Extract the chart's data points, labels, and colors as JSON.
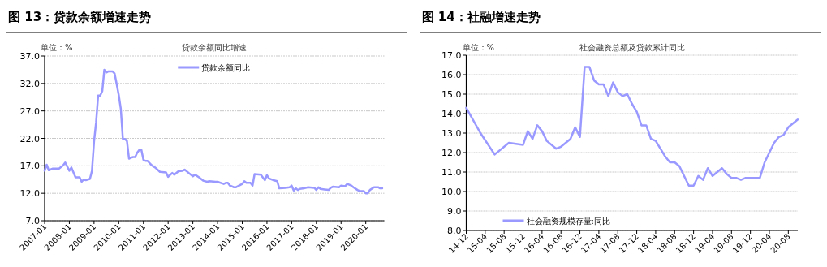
{
  "chart_data": [
    {
      "type": "line",
      "title": "图 13：贷款余额增速走势",
      "subtitle": "贷款余额同比增速",
      "ylabel": "单位：%",
      "x": [
        "2007-01",
        "2007-02",
        "2007-03",
        "2007-05",
        "2007-08",
        "2007-10",
        "2007-11",
        "2008-01",
        "2008-02",
        "2008-04",
        "2008-06",
        "2008-07",
        "2008-08",
        "2008-09",
        "2008-10",
        "2008-11",
        "2008-12",
        "2009-01",
        "2009-02",
        "2009-03",
        "2009-04",
        "2009-05",
        "2009-06",
        "2009-07",
        "2009-08",
        "2009-09",
        "2009-10",
        "2009-11",
        "2009-12",
        "2010-01",
        "2010-02",
        "2010-03",
        "2010-04",
        "2010-05",
        "2010-06",
        "2010-07",
        "2010-08",
        "2010-09",
        "2010-10",
        "2010-11",
        "2010-12",
        "2011-01",
        "2011-02",
        "2011-03",
        "2011-05",
        "2011-07",
        "2011-09",
        "2011-12",
        "2012-01",
        "2012-03",
        "2012-04",
        "2012-06",
        "2012-08",
        "2012-09",
        "2012-11",
        "2013-01",
        "2013-02",
        "2013-04",
        "2013-06",
        "2013-08",
        "2013-09",
        "2013-12",
        "2014-01",
        "2014-04",
        "2014-05",
        "2014-06",
        "2014-07",
        "2014-09",
        "2014-10",
        "2015-01",
        "2015-02",
        "2015-03",
        "2015-05",
        "2015-06",
        "2015-07",
        "2015-10",
        "2015-12",
        "2016-01",
        "2016-02",
        "2016-04",
        "2016-06",
        "2016-07",
        "2016-10",
        "2016-12",
        "2017-01",
        "2017-02",
        "2017-03",
        "2017-04",
        "2017-05",
        "2017-07",
        "2017-09",
        "2017-12",
        "2018-01",
        "2018-02",
        "2018-03",
        "2018-05",
        "2018-07",
        "2018-08",
        "2018-09",
        "2018-12",
        "2019-01",
        "2019-03",
        "2019-04",
        "2019-06",
        "2019-07",
        "2019-09",
        "2019-10",
        "2019-12",
        "2020-01",
        "2020-02",
        "2020-03",
        "2020-05",
        "2020-07",
        "2020-08",
        "2020-09"
      ],
      "series": [
        {
          "name": "贷款余额同比",
          "color": "#9999ff",
          "values": [
            16.1,
            17.2,
            16.2,
            16.5,
            16.5,
            17.1,
            17.6,
            16.1,
            16.7,
            14.9,
            14.9,
            14.1,
            14.5,
            14.4,
            14.5,
            14.6,
            16.1,
            21.4,
            24.9,
            29.8,
            29.8,
            30.6,
            34.5,
            34.0,
            34.2,
            34.2,
            34.2,
            33.8,
            31.9,
            29.9,
            27.4,
            21.9,
            21.9,
            21.5,
            18.3,
            18.5,
            18.6,
            18.6,
            19.4,
            19.9,
            19.9,
            18.1,
            17.9,
            17.9,
            17.1,
            16.6,
            15.9,
            15.8,
            15.0,
            15.7,
            15.4,
            16.0,
            16.1,
            16.3,
            15.7,
            15.1,
            15.4,
            14.9,
            14.3,
            14.1,
            14.2,
            14.1,
            14.1,
            13.7,
            13.9,
            13.9,
            13.4,
            13.1,
            13.1,
            13.7,
            14.2,
            13.9,
            13.9,
            13.4,
            15.5,
            15.4,
            14.4,
            15.3,
            14.7,
            14.4,
            14.2,
            12.9,
            13.0,
            13.1,
            13.4,
            12.5,
            12.9,
            12.6,
            12.8,
            12.9,
            13.1,
            13.0,
            12.6,
            13.1,
            12.8,
            12.7,
            12.6,
            13.0,
            13.2,
            13.1,
            13.4,
            13.3,
            13.7,
            13.4,
            13.1,
            12.6,
            12.4,
            12.4,
            12.0,
            12.0,
            12.6,
            13.1,
            13.1,
            12.9,
            12.9
          ]
        }
      ],
      "xlim": [
        "2007-01",
        "2020-10"
      ],
      "xticks": [
        "2007-01",
        "2008-01",
        "2009-01",
        "2010-01",
        "2011-01",
        "2012-01",
        "2013-01",
        "2014-01",
        "2015-01",
        "2016-01",
        "2017-01",
        "2018-01",
        "2019-01",
        "2020-01"
      ],
      "ylim": [
        7,
        37
      ],
      "yticks": [
        {
          "value": 7,
          "label": "7.0"
        },
        {
          "value": 12,
          "label": "12.0"
        },
        {
          "value": 17,
          "label": "17.0"
        },
        {
          "value": 22,
          "label": "22.0"
        },
        {
          "value": 27,
          "label": "27.0"
        },
        {
          "value": 32,
          "label": "32.0"
        },
        {
          "value": 37,
          "label": "37.0"
        }
      ],
      "grid": "y",
      "legend": "top"
    },
    {
      "type": "line",
      "title": "图 14：社融增速走势",
      "subtitle": "社会融资总额及贷款累计同比",
      "ylabel": "单位：%",
      "x": [
        "2014-12",
        "2015-03",
        "2015-06",
        "2015-09",
        "2015-12",
        "2016-01",
        "2016-02",
        "2016-03",
        "2016-04",
        "2016-05",
        "2016-07",
        "2016-08",
        "2016-10",
        "2016-11",
        "2016-12",
        "2017-01",
        "2017-02",
        "2017-03",
        "2017-04",
        "2017-05",
        "2017-06",
        "2017-07",
        "2017-08",
        "2017-09",
        "2017-10",
        "2017-11",
        "2017-12",
        "2018-01",
        "2018-02",
        "2018-03",
        "2018-04",
        "2018-05",
        "2018-06",
        "2018-07",
        "2018-08",
        "2018-09",
        "2018-10",
        "2018-11",
        "2018-12",
        "2019-01",
        "2019-02",
        "2019-03",
        "2019-04",
        "2019-05",
        "2019-06",
        "2019-07",
        "2019-08",
        "2019-09",
        "2019-10",
        "2019-11",
        "2019-12",
        "2020-02",
        "2020-03",
        "2020-04",
        "2020-05",
        "2020-06",
        "2020-07",
        "2020-08",
        "2020-09",
        "2020-10"
      ],
      "series": [
        {
          "name": "社会融资规模存量:同比",
          "color": "#9999ff",
          "values": [
            14.3,
            13.0,
            11.9,
            12.5,
            12.4,
            13.1,
            12.7,
            13.4,
            13.1,
            12.6,
            12.2,
            12.3,
            12.7,
            13.3,
            12.8,
            16.4,
            16.4,
            15.7,
            15.5,
            15.5,
            14.9,
            15.6,
            15.1,
            14.9,
            15.0,
            14.5,
            14.1,
            13.4,
            13.4,
            12.7,
            12.6,
            12.2,
            11.8,
            11.5,
            11.5,
            11.3,
            10.8,
            10.3,
            10.3,
            10.8,
            10.6,
            11.2,
            10.8,
            11.0,
            11.2,
            10.9,
            10.7,
            10.7,
            10.6,
            10.7,
            10.7,
            10.7,
            11.5,
            12.0,
            12.5,
            12.8,
            12.9,
            13.3,
            13.5,
            13.7
          ]
        }
      ],
      "xlim": [
        "2014-12",
        "2020-10"
      ],
      "xticks": [
        {
          "value": "2014-12",
          "label": "14-12"
        },
        {
          "value": "2015-04",
          "label": "15-04"
        },
        {
          "value": "2015-08",
          "label": "15-08"
        },
        {
          "value": "2015-12",
          "label": "15-12"
        },
        {
          "value": "2016-04",
          "label": "16-04"
        },
        {
          "value": "2016-08",
          "label": "16-08"
        },
        {
          "value": "2016-12",
          "label": "16-12"
        },
        {
          "value": "2017-04",
          "label": "17-04"
        },
        {
          "value": "2017-08",
          "label": "17-08"
        },
        {
          "value": "2017-12",
          "label": "17-12"
        },
        {
          "value": "2018-04",
          "label": "18-04"
        },
        {
          "value": "2018-08",
          "label": "18-08"
        },
        {
          "value": "2018-12",
          "label": "18-12"
        },
        {
          "value": "2019-04",
          "label": "19-04"
        },
        {
          "value": "2019-08",
          "label": "19-08"
        },
        {
          "value": "2019-12",
          "label": "19-12"
        },
        {
          "value": "2020-04",
          "label": "20-04"
        },
        {
          "value": "2020-08",
          "label": "20-08"
        }
      ],
      "ylim": [
        8,
        17
      ],
      "yticks": [
        {
          "value": 8,
          "label": "8.0"
        },
        {
          "value": 9,
          "label": "9.0"
        },
        {
          "value": 10,
          "label": "10.0"
        },
        {
          "value": 11,
          "label": "11.0"
        },
        {
          "value": 12,
          "label": "12.0"
        },
        {
          "value": 13,
          "label": "13.0"
        },
        {
          "value": 14,
          "label": "14.0"
        },
        {
          "value": 15,
          "label": "15.0"
        },
        {
          "value": 16,
          "label": "16.0"
        },
        {
          "value": 17,
          "label": "17.0"
        }
      ],
      "grid": "y",
      "legend": "bottom left"
    }
  ]
}
